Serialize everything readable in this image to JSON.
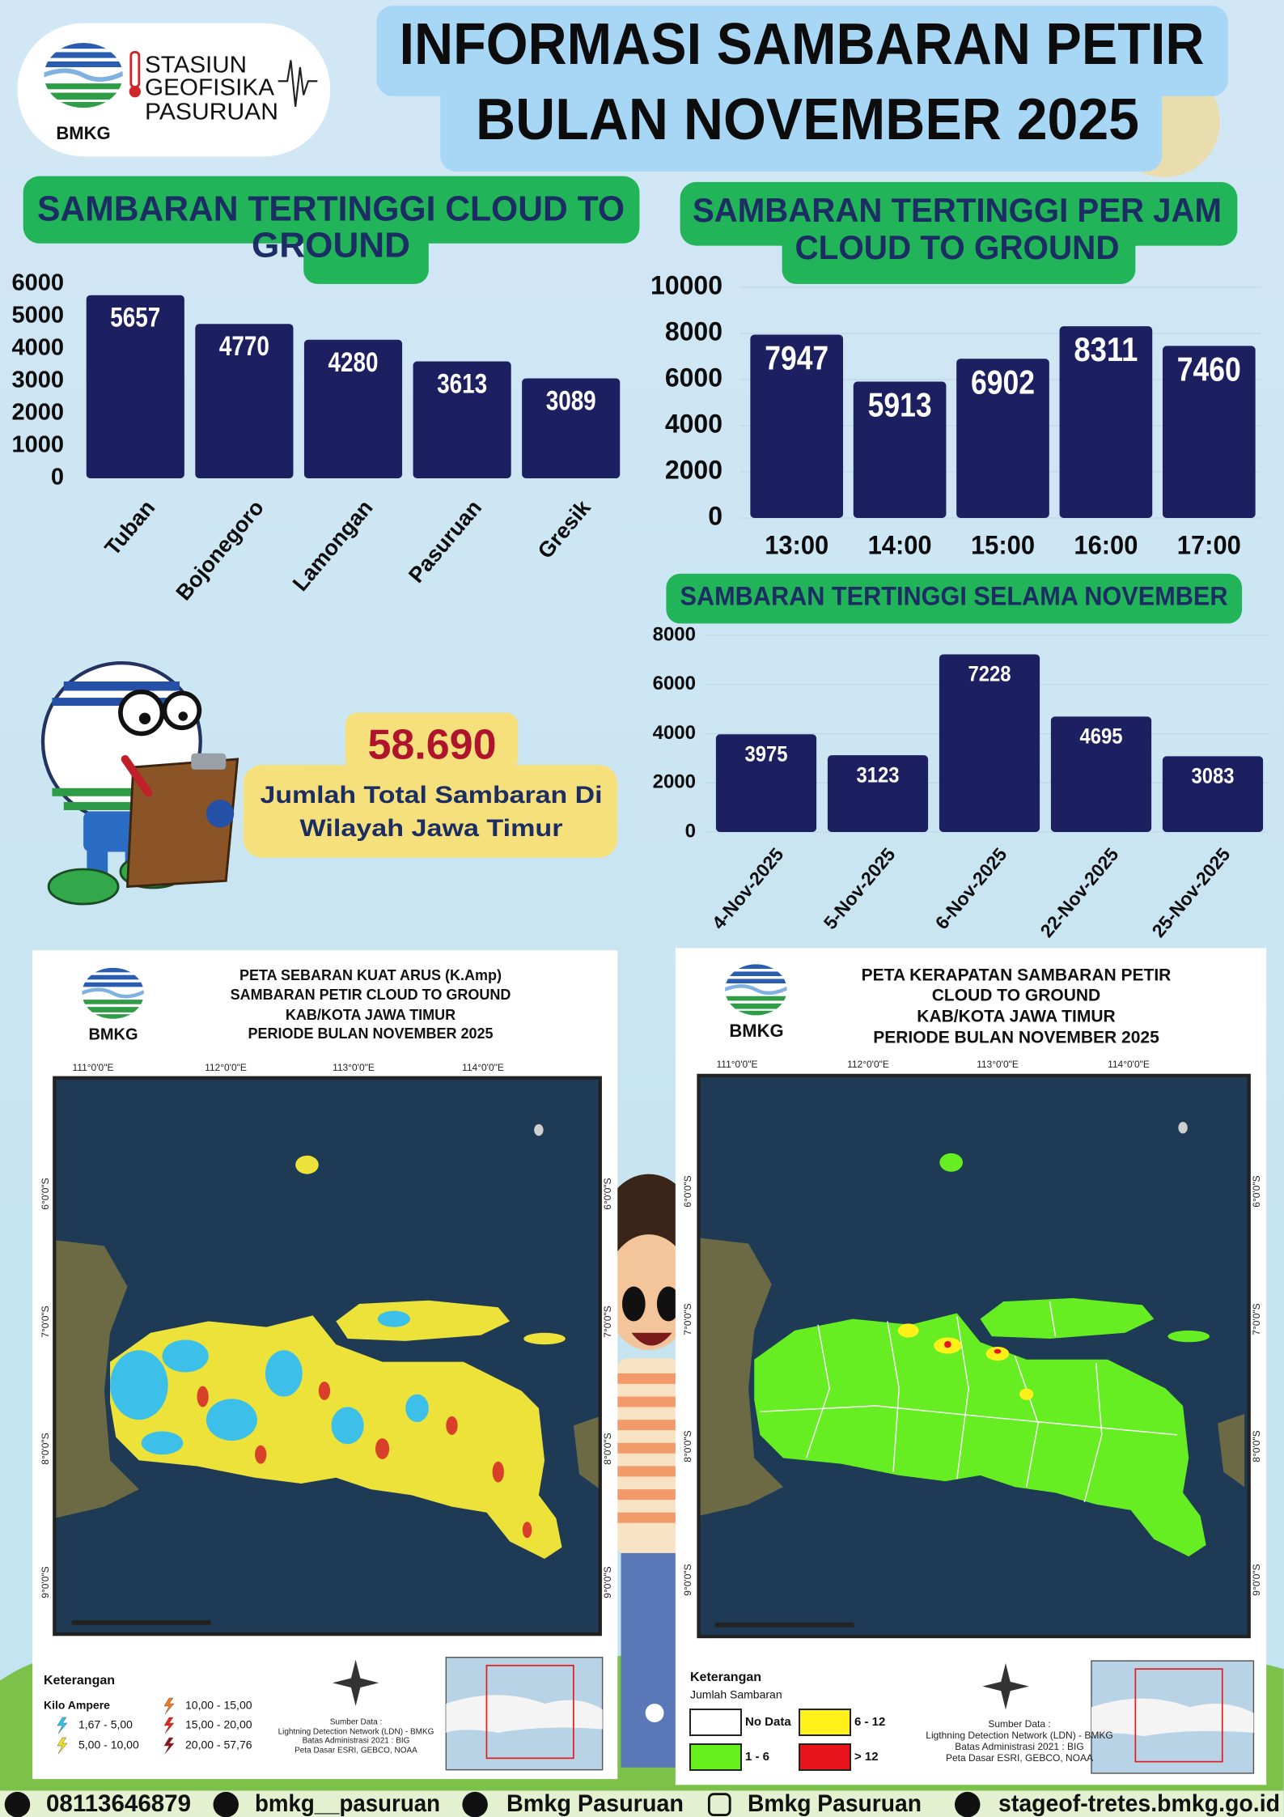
{
  "header": {
    "logo_text": "BMKG",
    "station": [
      "STASIUN",
      "GEOFISIKA",
      "PASURUAN"
    ],
    "title": [
      "INFORMASI SAMBARAN PETIR",
      "BULAN NOVEMBER 2025"
    ]
  },
  "chart_data": [
    {
      "type": "bar",
      "title": [
        "SAMBARAN TERTINGGI  CLOUD TO",
        "GROUND"
      ],
      "categories": [
        "Tuban",
        "Bojonegoro",
        "Lamongan",
        "Pasuruan",
        "Gresik"
      ],
      "values": [
        5657,
        4770,
        4280,
        3613,
        3089
      ],
      "color": "#1c1f60",
      "ylim": [
        0,
        6000
      ],
      "yticks": [
        0,
        1000,
        2000,
        3000,
        4000,
        5000,
        6000
      ],
      "grid": false
    },
    {
      "type": "bar",
      "title": [
        "SAMBARAN TERTINGGI PER JAM",
        "CLOUD TO GROUND"
      ],
      "categories": [
        "13:00",
        "14:00",
        "15:00",
        "16:00",
        "17:00"
      ],
      "values": [
        7947,
        5913,
        6902,
        8311,
        7460
      ],
      "color": "#1c1f60",
      "ylim": [
        0,
        10000
      ],
      "yticks": [
        0,
        2000,
        4000,
        6000,
        8000,
        10000
      ],
      "grid": true
    },
    {
      "type": "bar",
      "title": [
        "SAMBARAN TERTINGGI SELAMA NOVEMBER"
      ],
      "categories": [
        "4-Nov-2025",
        "5-Nov-2025",
        "6-Nov-2025",
        "22-Nov-2025",
        "25-Nov-2025"
      ],
      "values": [
        3975,
        3123,
        7228,
        4695,
        3083
      ],
      "color": "#1c1f60",
      "ylim": [
        0,
        8000
      ],
      "yticks": [
        0,
        2000,
        4000,
        6000,
        8000
      ],
      "grid": true
    }
  ],
  "total": {
    "value": "58.690",
    "caption": [
      "Jumlah Total Sambaran Di",
      "Wilayah Jawa Timur"
    ]
  },
  "maps": [
    {
      "logo_text": "BMKG",
      "title": [
        "PETA SEBARAN KUAT ARUS (K.Amp)",
        "SAMBARAN PETIR CLOUD TO GROUND",
        "KAB/KOTA JAWA TIMUR",
        "PERIODE BULAN  NOVEMBER 2025"
      ],
      "lon": [
        "111°0'0\"E",
        "112°0'0\"E",
        "113°0'0\"E",
        "114°0'0\"E"
      ],
      "lat": [
        "6°0'0\"S",
        "7°0'0\"S",
        "8°0'0\"S",
        "9°0'0\"S"
      ],
      "legend_title": "Keterangan",
      "legend_subtitle": "Kilo Ampere",
      "legend": [
        {
          "label": "1,67 - 5,00",
          "color": "#2fc3ef"
        },
        {
          "label": "5,00 - 10,00",
          "color": "#f2e21c"
        },
        {
          "label": "10,00 - 15,00",
          "color": "#f07a22"
        },
        {
          "label": "15,00 - 20,00",
          "color": "#e2261f"
        },
        {
          "label": "20,00 - 57,76",
          "color": "#8c1414"
        }
      ],
      "source": [
        "Sumber Data :",
        "Lightning Detection Network (LDN) - BMKG",
        "Batas Administrasi 2021  : BIG",
        "Peta Dasar ESRI, GEBCO, NOAA"
      ]
    },
    {
      "logo_text": "BMKG",
      "title": [
        "PETA KERAPATAN SAMBARAN PETIR",
        "CLOUD TO GROUND",
        "KAB/KOTA JAWA TIMUR",
        "PERIODE BULAN  NOVEMBER 2025"
      ],
      "lon": [
        "111°0'0\"E",
        "112°0'0\"E",
        "113°0'0\"E",
        "114°0'0\"E"
      ],
      "lat": [
        "6°0'0\"S",
        "7°0'0\"S",
        "8°0'0\"S",
        "9°0'0\"S"
      ],
      "legend_title": "Keterangan",
      "legend_subtitle": "Jumlah Sambaran",
      "legend": [
        {
          "label": "No Data",
          "color": "#ffffff"
        },
        {
          "label": "1 - 6",
          "color": "#66f01c"
        },
        {
          "label": "6 - 12",
          "color": "#fff01a"
        },
        {
          "label": "> 12",
          "color": "#e8141b"
        }
      ],
      "source": [
        "Sumber Data :",
        "Ligthning Detection Network (LDN) - BMKG",
        "Batas Administrasi 2021  : BIG",
        "Peta Dasar ESRI, GEBCO, NOAA"
      ]
    }
  ],
  "footer": [
    "08113646879",
    "bmkg__pasuruan",
    "Bmkg Pasuruan",
    "Bmkg Pasuruan",
    "stageof-tretes.bmkg.go.id"
  ]
}
